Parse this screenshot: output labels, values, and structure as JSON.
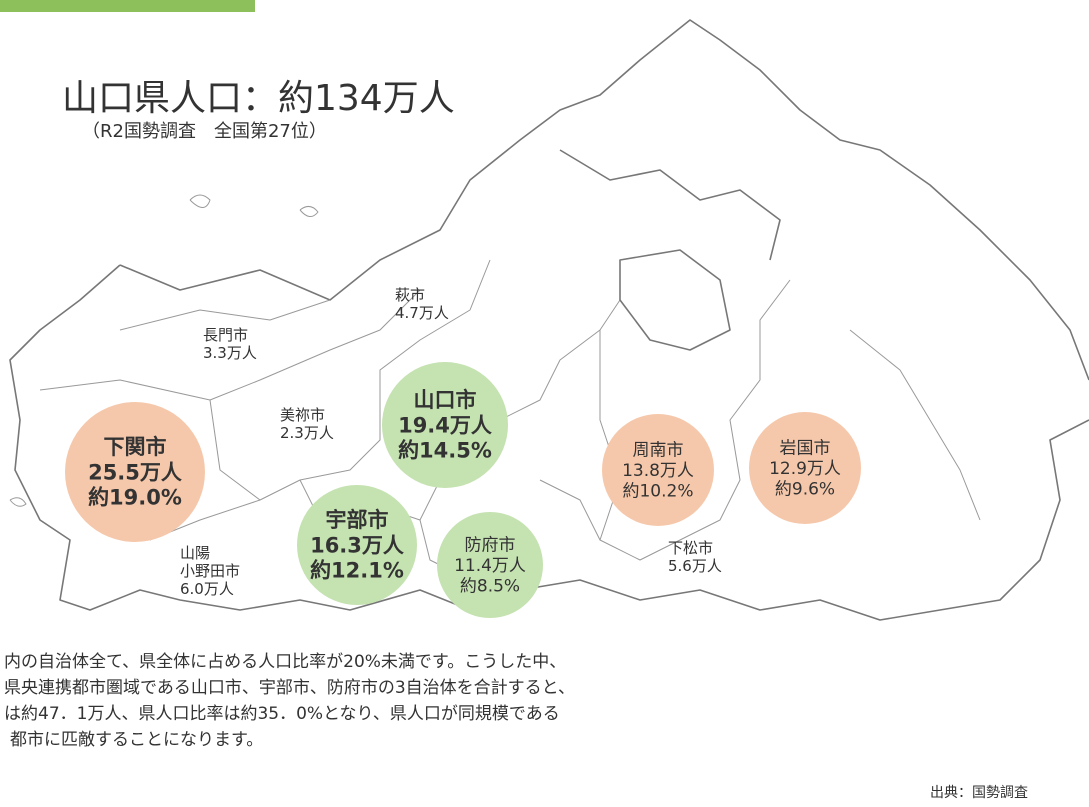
{
  "title": "山口県人口：約134万人",
  "subtitle": "（R2国勢調査　全国第27位）",
  "cities": [
    {
      "lines": [
        "萩市",
        "4.7万人"
      ]
    },
    {
      "lines": [
        "長門市",
        "3.3万人"
      ]
    },
    {
      "lines": [
        "美祢市",
        "2.3万人"
      ]
    },
    {
      "lines": [
        "下関市",
        "25.5万人",
        "約19.0%"
      ],
      "circle": "#f6c8ab"
    },
    {
      "lines": [
        "山口市",
        "19.4万人",
        "約14.5%"
      ],
      "circle": "#c5e2b1"
    },
    {
      "lines": [
        "宇部市",
        "16.3万人",
        "約12.1%"
      ],
      "circle": "#c5e2b1"
    },
    {
      "lines": [
        "防府市",
        "11.4万人",
        "約8.5%"
      ],
      "circle": "#c5e2b1"
    },
    {
      "lines": [
        "周南市",
        "13.8万人",
        "約10.2%"
      ],
      "circle": "#f6c8ab"
    },
    {
      "lines": [
        "岩国市",
        "12.9万人",
        "約9.6%"
      ],
      "circle": "#f6c8ab"
    },
    {
      "lines": [
        "下松市",
        "5.6万人"
      ]
    },
    {
      "lines": [
        "山陽",
        "小野田市",
        "6.0万人"
      ]
    }
  ],
  "paragraph": [
    "内の自治体全て、県全体に占める人口比率が20%未満です。こうした中、",
    "県央連携都市圏域である山口市、宇部市、防府市の3自治体を合計すると、",
    "は約47．1万人、県人口比率は約35．0%となり、県人口が同規模である",
    "都市に匹敵することになります。"
  ],
  "source": "出典：国勢調査"
}
